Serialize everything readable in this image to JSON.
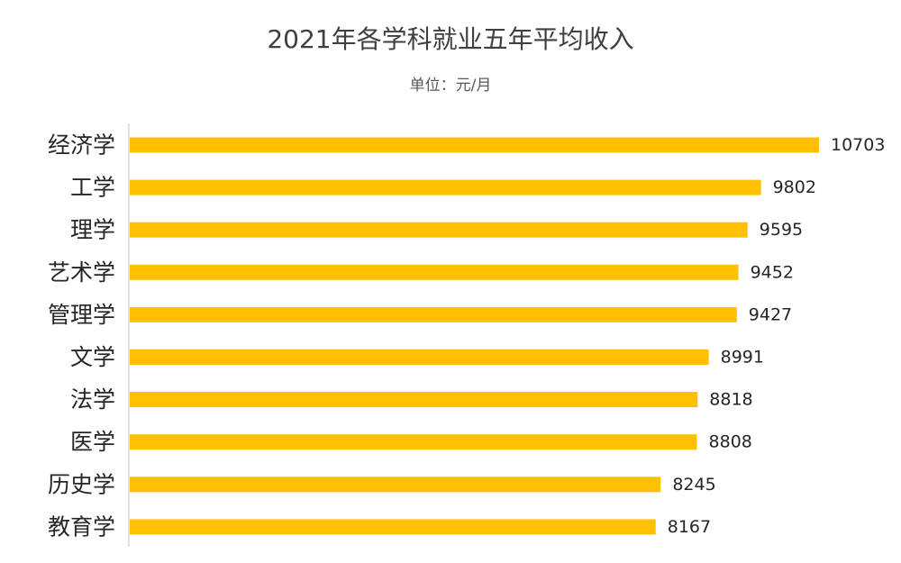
{
  "chart_data": {
    "type": "bar",
    "orientation": "horizontal",
    "title": "2021年各学科就业五年平均收入",
    "subtitle": "单位：元/月",
    "categories": [
      "经济学",
      "工学",
      "理学",
      "艺术学",
      "管理学",
      "文学",
      "法学",
      "医学",
      "历史学",
      "教育学"
    ],
    "values": [
      10703,
      9802,
      9595,
      9452,
      9427,
      8991,
      8818,
      8808,
      8245,
      8167
    ],
    "xlabel": "",
    "ylabel": "",
    "grid": false,
    "legend": "none",
    "bar_color": "#FFC000",
    "axis_color": "#D9D9D9"
  }
}
